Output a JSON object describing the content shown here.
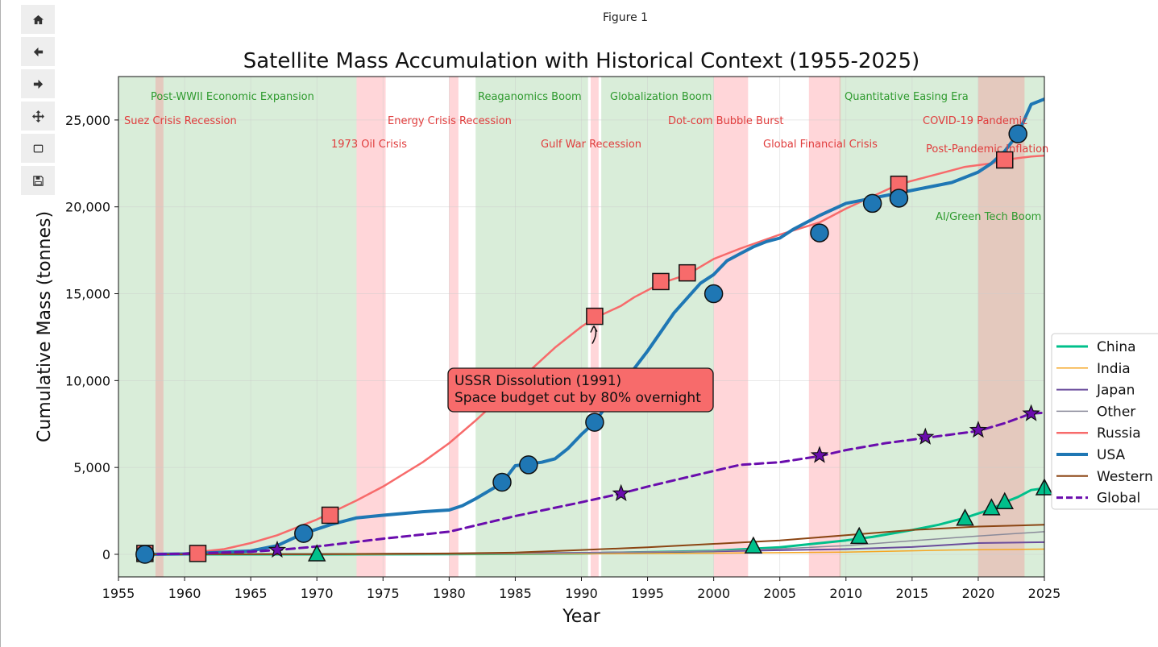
{
  "window": {
    "figure_label": "Figure 1"
  },
  "toolbar": [
    {
      "name": "home-button",
      "icon": "home-icon"
    },
    {
      "name": "back-button",
      "icon": "arrow-left-icon"
    },
    {
      "name": "forward-button",
      "icon": "arrow-right-icon"
    },
    {
      "name": "pan-button",
      "icon": "move-icon"
    },
    {
      "name": "zoom-button",
      "icon": "zoom-rect-icon"
    },
    {
      "name": "save-button",
      "icon": "save-icon"
    }
  ],
  "chart_data": {
    "type": "line",
    "title": "Satellite Mass Accumulation with Historical Context (1955-2025)",
    "xlabel": "Year",
    "ylabel": "Cumulative Mass (tonnes)",
    "xlim": [
      1955,
      2025
    ],
    "ylim": [
      -1300,
      27500
    ],
    "xticks": [
      1955,
      1960,
      1965,
      1970,
      1975,
      1980,
      1985,
      1990,
      1995,
      2000,
      2005,
      2010,
      2015,
      2020,
      2025
    ],
    "yticks": [
      0,
      5000,
      10000,
      15000,
      20000,
      25000
    ],
    "ytick_labels": [
      "0",
      "5,000",
      "10,000",
      "15,000",
      "20,000",
      "25,000"
    ],
    "grid": true,
    "legend_position": "right",
    "legend": [
      "China",
      "India",
      "Japan",
      "Other",
      "Russia",
      "USA",
      "Western",
      "Global"
    ],
    "series": [
      {
        "name": "China",
        "color": "#00c08b",
        "width": 3,
        "dash": "",
        "x": [
          1957,
          1970,
          1980,
          1990,
          2000,
          2005,
          2010,
          2012,
          2015,
          2017,
          2019,
          2021,
          2022,
          2023,
          2024,
          2025
        ],
        "y": [
          0,
          0,
          10,
          50,
          200,
          400,
          800,
          1000,
          1400,
          1700,
          2100,
          2600,
          3000,
          3300,
          3700,
          3800
        ],
        "markers": {
          "shape": "triangle",
          "x": [
            1970,
            2003,
            2011,
            2019,
            2021,
            2022,
            2025
          ],
          "y": [
            0,
            450,
            1000,
            2050,
            2650,
            3000,
            3800
          ]
        }
      },
      {
        "name": "India",
        "color": "#f5a623",
        "width": 1.5,
        "dash": "",
        "x": [
          1957,
          1975,
          1990,
          2000,
          2010,
          2018,
          2025
        ],
        "y": [
          0,
          0,
          30,
          70,
          130,
          250,
          300
        ]
      },
      {
        "name": "Japan",
        "color": "#6a4c9c",
        "width": 2,
        "dash": "",
        "x": [
          1957,
          1970,
          1980,
          1990,
          2000,
          2010,
          2015,
          2020,
          2025
        ],
        "y": [
          0,
          10,
          40,
          90,
          170,
          300,
          420,
          650,
          700
        ]
      },
      {
        "name": "Other",
        "color": "#8a8a9a",
        "width": 1.5,
        "dash": "",
        "x": [
          1957,
          1980,
          1990,
          2000,
          2005,
          2010,
          2015,
          2020,
          2025
        ],
        "y": [
          0,
          20,
          80,
          200,
          320,
          500,
          780,
          1050,
          1300
        ]
      },
      {
        "name": "Russia",
        "color": "#f76b6b",
        "width": 2.5,
        "dash": "",
        "x": [
          1957,
          1960,
          1963,
          1965,
          1967,
          1970,
          1973,
          1975,
          1978,
          1980,
          1982,
          1984,
          1986,
          1988,
          1990,
          1991,
          1993,
          1994,
          1996,
          1998,
          2000,
          2002,
          2005,
          2008,
          2010,
          2012,
          2014,
          2016,
          2018,
          2019,
          2021,
          2022,
          2023,
          2024,
          2025
        ],
        "y": [
          0,
          50,
          300,
          650,
          1100,
          2000,
          3100,
          3900,
          5300,
          6400,
          7700,
          9100,
          10500,
          11900,
          13100,
          13600,
          14300,
          14800,
          15600,
          16100,
          17000,
          17600,
          18400,
          19100,
          19900,
          20600,
          21300,
          21700,
          22100,
          22300,
          22500,
          22700,
          22800,
          22900,
          22950
        ],
        "markers": {
          "shape": "square",
          "x": [
            1957,
            1961,
            1971,
            1991,
            1996,
            1998,
            2014,
            2022
          ],
          "y": [
            50,
            50,
            2250,
            13700,
            15700,
            16200,
            21300,
            22700
          ]
        }
      },
      {
        "name": "USA",
        "color": "#1f77b4",
        "width": 4,
        "dash": "",
        "x": [
          1957,
          1960,
          1965,
          1967,
          1969,
          1971,
          1973,
          1975,
          1978,
          1980,
          1981,
          1982,
          1984,
          1985,
          1986,
          1987,
          1988,
          1989,
          1990,
          1991,
          1993,
          1995,
          1997,
          1999,
          2000,
          2001,
          2002,
          2003,
          2004,
          2005,
          2006,
          2008,
          2010,
          2012,
          2014,
          2016,
          2018,
          2019,
          2020,
          2021,
          2022,
          2023,
          2024,
          2025
        ],
        "y": [
          0,
          20,
          200,
          500,
          1200,
          1700,
          2100,
          2250,
          2450,
          2550,
          2800,
          3200,
          4100,
          5100,
          5200,
          5300,
          5500,
          6100,
          6900,
          7600,
          9700,
          11700,
          13900,
          15600,
          16100,
          16900,
          17300,
          17700,
          18000,
          18200,
          18700,
          19500,
          20200,
          20500,
          20800,
          21100,
          21400,
          21700,
          22000,
          22500,
          23200,
          24200,
          25900,
          26200
        ],
        "markers": {
          "shape": "circle",
          "x": [
            1957,
            1969,
            1984,
            1986,
            1991,
            2000,
            2008,
            2012,
            2014,
            2023
          ],
          "y": [
            0,
            1200,
            4150,
            5150,
            7600,
            15000,
            18500,
            20200,
            20500,
            24200
          ]
        }
      },
      {
        "name": "Western",
        "color": "#8b4513",
        "width": 2,
        "dash": "",
        "x": [
          1957,
          1970,
          1980,
          1985,
          1990,
          1995,
          2000,
          2005,
          2010,
          2015,
          2020,
          2025
        ],
        "y": [
          0,
          10,
          50,
          100,
          250,
          400,
          600,
          800,
          1100,
          1400,
          1600,
          1700
        ]
      },
      {
        "name": "Global",
        "color": "#6a0dad",
        "width": 3,
        "dash": "10,6",
        "x": [
          1957,
          1960,
          1965,
          1967,
          1970,
          1975,
          1980,
          1985,
          1990,
          1993,
          1995,
          2000,
          2002,
          2005,
          2008,
          2010,
          2013,
          2016,
          2020,
          2022,
          2024,
          2025
        ],
        "y": [
          0,
          30,
          150,
          250,
          450,
          900,
          1300,
          2200,
          3000,
          3500,
          3900,
          4800,
          5150,
          5300,
          5650,
          6000,
          6400,
          6700,
          7100,
          7550,
          8100,
          8150
        ],
        "markers": {
          "shape": "star",
          "x": [
            1967,
            1993,
            2008,
            2016,
            2020,
            2024
          ],
          "y": [
            250,
            3500,
            5700,
            6750,
            7150,
            8100
          ]
        }
      }
    ],
    "periods": [
      {
        "type": "boom",
        "start": 1955,
        "end": 1973,
        "label": "Post-WWII Economic Expansion"
      },
      {
        "type": "boom",
        "start": 1982,
        "end": 1990.5,
        "label": "Reaganomics Boom"
      },
      {
        "type": "boom",
        "start": 1991.5,
        "end": 2000,
        "label": "Globalization Boom"
      },
      {
        "type": "boom",
        "start": 2009.5,
        "end": 2020,
        "label": "Quantitative Easing Era"
      },
      {
        "type": "boom",
        "start": 2020,
        "end": 2025,
        "label": "AI/Green Tech Boom"
      },
      {
        "type": "recession",
        "start": 1957.8,
        "end": 1958.4,
        "label": "Suez Crisis Recession"
      },
      {
        "type": "recession",
        "start": 1973,
        "end": 1975.2,
        "label": "1973 Oil Crisis"
      },
      {
        "type": "recession",
        "start": 1980,
        "end": 1980.7,
        "label": "Energy Crisis Recession"
      },
      {
        "type": "recession",
        "start": 1990.7,
        "end": 1991.3,
        "label": "Gulf War Recession"
      },
      {
        "type": "recession",
        "start": 2000,
        "end": 2002.6,
        "label": "Dot-com Bubble Burst"
      },
      {
        "type": "recession",
        "start": 2007.2,
        "end": 2009.6,
        "label": "Global Financial Crisis"
      },
      {
        "type": "recession",
        "start": 2020,
        "end": 2021.5,
        "label": "COVID-19 Pandemic"
      },
      {
        "type": "recession",
        "start": 2021.5,
        "end": 2023.5,
        "label": "Post-Pandemic Inflation"
      }
    ],
    "annotation": {
      "text": [
        "USSR Dissolution (1991)",
        "Space budget cut by 80% overnight"
      ],
      "point_x": 1991,
      "point_y": 13700,
      "color": "#f76b6b"
    }
  }
}
